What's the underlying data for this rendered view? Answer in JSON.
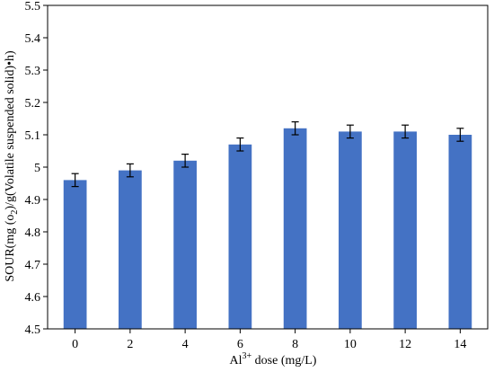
{
  "chart_data": {
    "type": "bar",
    "categories": [
      "0",
      "2",
      "4",
      "6",
      "8",
      "10",
      "12",
      "14"
    ],
    "series": [
      {
        "values": [
          4.96,
          4.99,
          5.02,
          5.07,
          5.12,
          5.11,
          5.11,
          5.1
        ],
        "errors": [
          0.02,
          0.02,
          0.02,
          0.02,
          0.02,
          0.02,
          0.02,
          0.02
        ],
        "color": "#4472C4"
      }
    ],
    "y_ticks": [
      "4.5",
      "4.6",
      "4.7",
      "4.8",
      "4.9",
      "5",
      "5.1",
      "5.2",
      "5.3",
      "5.4",
      "5.5"
    ],
    "ylim": [
      4.5,
      5.5
    ],
    "grid": false,
    "xlabel": {
      "prefix": "Al",
      "superscript": "3+",
      "suffix": " dose (mg/L)"
    },
    "ylabel": {
      "prefix": "SOUR(mg (o",
      "subscript": "2",
      "suffix": ")/g(Volatile suspended solid)•h)"
    }
  }
}
